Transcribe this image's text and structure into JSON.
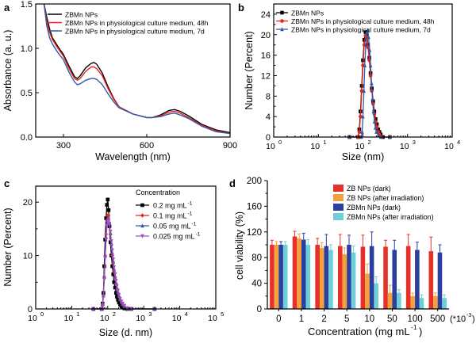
{
  "panel_labels": [
    "a",
    "b",
    "c",
    "d"
  ],
  "colors": {
    "black": "#000000",
    "red": "#e8231e",
    "blue": "#2f5aa8",
    "purple": "#a04fc0",
    "d_red": "#e8302a",
    "d_orange": "#f2a23a",
    "d_blue": "#2c3f9f",
    "d_cyan": "#6fcfd9"
  },
  "chart_data": [
    {
      "panel": "a",
      "type": "line",
      "xlabel": "Wavelength (nm)",
      "ylabel": "Absorbance (a. u.)",
      "xlim": [
        200,
        900
      ],
      "ylim": [
        0,
        1.5
      ],
      "xticks": [
        300,
        600,
        900
      ],
      "yticks": [
        0.0,
        0.5,
        1.0,
        1.5
      ],
      "ytick_labels": [
        "0.0",
        "0.5",
        "1.0",
        "1.5"
      ],
      "legend": "top-right",
      "series": [
        {
          "name": "ZBMn NPs",
          "color": "black",
          "x": [
            230,
            240,
            250,
            260,
            280,
            300,
            320,
            340,
            350,
            360,
            380,
            400,
            410,
            420,
            440,
            460,
            480,
            500,
            550,
            600,
            620,
            650,
            680,
            700,
            720,
            750,
            800,
            850,
            900
          ],
          "y": [
            1.5,
            1.35,
            1.22,
            1.12,
            1.02,
            0.93,
            0.8,
            0.68,
            0.66,
            0.69,
            0.78,
            0.83,
            0.84,
            0.82,
            0.72,
            0.57,
            0.44,
            0.34,
            0.26,
            0.22,
            0.22,
            0.25,
            0.3,
            0.31,
            0.29,
            0.24,
            0.14,
            0.08,
            0.05
          ]
        },
        {
          "name": "ZBMn NPs in physiological culture medium, 48h",
          "color": "red",
          "x": [
            230,
            240,
            250,
            260,
            280,
            300,
            320,
            340,
            350,
            360,
            380,
            400,
            410,
            420,
            440,
            460,
            480,
            500,
            550,
            600,
            620,
            650,
            680,
            700,
            720,
            750,
            800,
            850,
            900
          ],
          "y": [
            1.5,
            1.3,
            1.18,
            1.1,
            1.0,
            0.91,
            0.77,
            0.66,
            0.64,
            0.66,
            0.74,
            0.79,
            0.79,
            0.77,
            0.69,
            0.55,
            0.43,
            0.34,
            0.26,
            0.22,
            0.22,
            0.24,
            0.28,
            0.29,
            0.27,
            0.22,
            0.13,
            0.07,
            0.04
          ]
        },
        {
          "name": "ZBMn NPs in physiological culture medium, 7d",
          "color": "blue",
          "x": [
            230,
            240,
            250,
            260,
            280,
            300,
            320,
            340,
            350,
            360,
            380,
            400,
            410,
            420,
            440,
            460,
            480,
            500,
            550,
            600,
            620,
            650,
            680,
            700,
            720,
            750,
            800,
            850,
            900
          ],
          "y": [
            1.5,
            1.25,
            1.12,
            1.05,
            0.95,
            0.87,
            0.73,
            0.62,
            0.59,
            0.6,
            0.64,
            0.66,
            0.66,
            0.65,
            0.59,
            0.49,
            0.4,
            0.33,
            0.26,
            0.22,
            0.22,
            0.23,
            0.26,
            0.27,
            0.25,
            0.21,
            0.12,
            0.06,
            0.04
          ]
        }
      ]
    },
    {
      "panel": "b",
      "type": "line",
      "xlabel": "Size (nm)",
      "ylabel": "Number (Percent)",
      "xscale": "log",
      "xlim_exp": [
        0,
        4
      ],
      "ylim": [
        0,
        26
      ],
      "yticks": [
        0,
        4,
        8,
        12,
        16,
        20,
        24
      ],
      "xtick_labels": [
        "10",
        "10",
        "10",
        "10",
        "10"
      ],
      "xtick_exps": [
        "0",
        "1",
        "2",
        "3",
        "4"
      ],
      "legend": "top-right",
      "series": [
        {
          "name": "ZBMn NPs",
          "color": "black",
          "marker": "square",
          "x": [
            50,
            78,
            83,
            88,
            94,
            100,
            107,
            114,
            122,
            130,
            139,
            148,
            158,
            169,
            180,
            192,
            205,
            219,
            234,
            250,
            280,
            400
          ],
          "y": [
            0,
            0,
            1.5,
            5,
            10,
            15,
            19,
            20.5,
            20,
            18,
            15.5,
            12.5,
            9.5,
            7,
            5,
            3.5,
            2.5,
            1.5,
            1,
            0.5,
            0,
            0
          ]
        },
        {
          "name": "ZBMn NPs in physiological culture medium, 48h",
          "color": "red",
          "marker": "circle",
          "x": [
            50,
            78,
            83,
            88,
            94,
            100,
            107,
            114,
            122,
            130,
            139,
            148,
            158,
            169,
            180,
            192,
            205,
            219,
            234,
            260,
            400
          ],
          "y": [
            0,
            0,
            1,
            4,
            9,
            14,
            18,
            19.8,
            19.5,
            17.5,
            15,
            12,
            9,
            6.5,
            4.5,
            3,
            2,
            1,
            0.5,
            0,
            0
          ]
        },
        {
          "name": "ZBMn NPs in physiological culture medium, 7d",
          "color": "blue",
          "marker": "triangle",
          "x": [
            50,
            92,
            96,
            100,
            105,
            110,
            116,
            122,
            128,
            134,
            141,
            148,
            156,
            164,
            172,
            181,
            190,
            200,
            220,
            250,
            400
          ],
          "y": [
            0,
            0,
            1,
            4,
            9,
            14,
            18,
            20.5,
            20.8,
            19.5,
            17,
            14,
            10.5,
            7.5,
            5,
            3,
            1.8,
            1,
            0.3,
            0,
            0
          ]
        }
      ]
    },
    {
      "panel": "c",
      "type": "line",
      "xlabel": "Size (d. nm)",
      "ylabel": "Number (Percent)",
      "xscale": "log",
      "xlim_exp": [
        0,
        5
      ],
      "ylim": [
        0,
        23
      ],
      "yticks": [
        0,
        10,
        20
      ],
      "xtick_labels": [
        "10",
        "10",
        "10",
        "10",
        "10",
        "10"
      ],
      "xtick_exps": [
        "0",
        "1",
        "2",
        "3",
        "4",
        "5"
      ],
      "legend_title": "Concentration",
      "legend": "top-right",
      "series": [
        {
          "name": "0.2 mg mL",
          "sup": "-1",
          "color": "black",
          "marker": "square",
          "x": [
            40,
            68,
            72,
            76,
            80,
            85,
            90,
            95,
            100,
            106,
            112,
            119,
            126,
            134,
            142,
            150,
            160,
            170,
            180,
            192,
            205,
            220,
            240,
            260,
            290,
            350,
            450,
            2000
          ],
          "y": [
            0,
            0,
            1,
            3,
            8,
            13,
            17,
            19.5,
            20.5,
            18.5,
            15.5,
            12.5,
            10,
            8,
            6.5,
            5,
            4,
            3,
            2.3,
            1.7,
            1.2,
            0.8,
            0.5,
            0.3,
            0.1,
            0,
            0,
            0
          ]
        },
        {
          "name": "0.1 mg mL",
          "sup": "-1",
          "color": "red",
          "marker": "diamond",
          "x": [
            40,
            68,
            72,
            76,
            80,
            85,
            90,
            95,
            100,
            106,
            112,
            119,
            126,
            134,
            142,
            150,
            160,
            170,
            180,
            192,
            205,
            220,
            240,
            260,
            290,
            350,
            450,
            2000
          ],
          "y": [
            0,
            0,
            0.8,
            2.5,
            6,
            10,
            14,
            16.5,
            17.5,
            17.5,
            16,
            14,
            12,
            10,
            8.5,
            7,
            5.8,
            4.7,
            3.8,
            3,
            2.3,
            1.7,
            1.2,
            0.8,
            0.4,
            0.1,
            0,
            0
          ]
        },
        {
          "name": "0.05 mg mL",
          "sup": "-1",
          "color": "blue",
          "marker": "triangle",
          "x": [
            40,
            68,
            72,
            76,
            80,
            85,
            90,
            95,
            100,
            106,
            112,
            119,
            126,
            134,
            142,
            150,
            160,
            170,
            180,
            192,
            205,
            220,
            240,
            260,
            290,
            350,
            450,
            2000
          ],
          "y": [
            0,
            0,
            0.8,
            2.5,
            6,
            10,
            13.5,
            16,
            17,
            17,
            16,
            14.2,
            12.3,
            10.5,
            9,
            7.5,
            6.2,
            5,
            4,
            3.2,
            2.5,
            1.8,
            1.3,
            0.9,
            0.5,
            0.1,
            0,
            0
          ]
        },
        {
          "name": "0.025 mg mL",
          "sup": "-1",
          "color": "purple",
          "marker": "triangle-down",
          "x": [
            40,
            68,
            72,
            76,
            80,
            85,
            90,
            95,
            100,
            106,
            112,
            119,
            126,
            134,
            142,
            150,
            160,
            170,
            180,
            192,
            205,
            220,
            240,
            260,
            290,
            350,
            450,
            2000
          ],
          "y": [
            0,
            0,
            0.7,
            2.3,
            5.5,
            9.5,
            13,
            15.5,
            16.5,
            16.8,
            16,
            14.5,
            12.7,
            11,
            9.3,
            7.8,
            6.5,
            5.3,
            4.3,
            3.4,
            2.6,
            1.9,
            1.4,
            1,
            0.6,
            0.15,
            0,
            0
          ]
        }
      ]
    },
    {
      "panel": "d",
      "type": "bar",
      "xlabel": "Concentration (mg mL",
      "xlabel_sup": "-1",
      "xlabel_close": ")",
      "xunit": "(*10",
      "xunit_sup": "-3",
      "xunit_close": ")",
      "ylabel": "cell viability (%)",
      "ylim": [
        0,
        200
      ],
      "yticks": [
        0,
        40,
        80,
        120,
        160,
        200
      ],
      "categories": [
        "0",
        "1",
        "2",
        "5",
        "10",
        "50",
        "100",
        "500"
      ],
      "legend": "top-right",
      "series": [
        {
          "name": "ZB NPs (dark)",
          "color": "d_red",
          "values": [
            100,
            113,
            100,
            98,
            97,
            97,
            98,
            90
          ],
          "errors": [
            7,
            8,
            10,
            18,
            18,
            10,
            18,
            22
          ]
        },
        {
          "name": "ZB NPs (after irradiation)",
          "color": "d_orange",
          "values": [
            100,
            110,
            95,
            85,
            55,
            25,
            20,
            20
          ],
          "errors": [
            5,
            7,
            8,
            10,
            15,
            12,
            5,
            5
          ]
        },
        {
          "name": "ZBMn NPs (dark)",
          "color": "d_blue",
          "values": [
            100,
            108,
            98,
            100,
            98,
            92,
            92,
            88
          ],
          "errors": [
            5,
            10,
            18,
            15,
            22,
            15,
            12,
            12
          ]
        },
        {
          "name": "ZBMn NPs (after irradiation)",
          "color": "d_cyan",
          "values": [
            100,
            100,
            92,
            88,
            40,
            25,
            17,
            17
          ],
          "errors": [
            5,
            8,
            8,
            10,
            10,
            5,
            5,
            5
          ]
        }
      ]
    }
  ]
}
